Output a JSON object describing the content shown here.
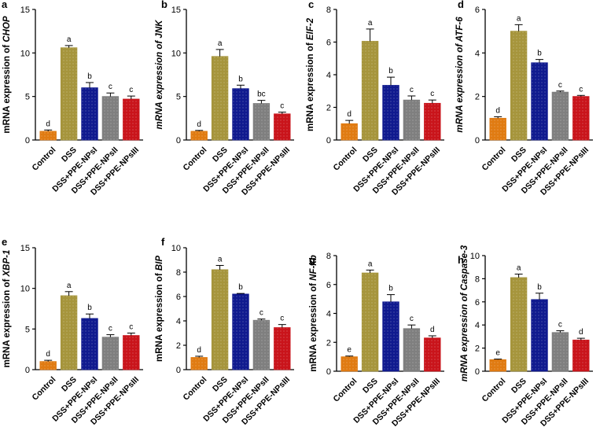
{
  "figure": {
    "groups": [
      "Control",
      "DSS",
      "DSS+PPE-NPsI",
      "DSS+PPE-NPsII",
      "DSS+PPE-NPsIII"
    ],
    "colors": [
      "#e07b12",
      "#a6953c",
      "#101a8f",
      "#7f7f7f",
      "#c9141b"
    ]
  },
  "chart_data": [
    {
      "type": "bar",
      "panel": "a",
      "ylabel_prefix": "mRNA expression of ",
      "gene": "CHOP",
      "ylim": [
        0,
        15
      ],
      "yticks": [
        0,
        5,
        10,
        15
      ],
      "categories": [
        "Control",
        "DSS",
        "DSS+PPE-NPsI",
        "DSS+PPE-NPsII",
        "DSS+PPE-NPsIII"
      ],
      "values": [
        1.0,
        10.6,
        6.0,
        5.0,
        4.7
      ],
      "errors": [
        0.15,
        0.25,
        0.6,
        0.4,
        0.35
      ],
      "letters": [
        "d",
        "a",
        "b",
        "c",
        "c"
      ]
    },
    {
      "type": "bar",
      "panel": "b",
      "ylabel_prefix": "mRNA expression of ",
      "gene": "JNK",
      "ylim": [
        0,
        15
      ],
      "yticks": [
        0,
        5,
        10,
        15
      ],
      "categories": [
        "Control",
        "DSS",
        "DSS+PPE-NPsI",
        "DSS+PPE-NPsII",
        "DSS+PPE-NPsIII"
      ],
      "values": [
        1.0,
        9.6,
        5.9,
        4.2,
        3.0
      ],
      "errors": [
        0.1,
        0.8,
        0.4,
        0.35,
        0.2
      ],
      "letters": [
        "d",
        "a",
        "b",
        "bc",
        "c"
      ]
    },
    {
      "type": "bar",
      "panel": "c",
      "ylabel_prefix": "mRNA expression of ",
      "gene": "EIF-2",
      "ylim": [
        0,
        8
      ],
      "yticks": [
        0,
        2,
        4,
        6,
        8
      ],
      "categories": [
        "Control",
        "DSS",
        "DSS+PPE-NPsI",
        "DSS+PPE-NPsII",
        "DSS+PPE-NPsIII"
      ],
      "values": [
        1.0,
        6.05,
        3.35,
        2.45,
        2.25
      ],
      "errors": [
        0.2,
        0.75,
        0.5,
        0.25,
        0.2
      ],
      "letters": [
        "d",
        "a",
        "b",
        "c",
        "c"
      ]
    },
    {
      "type": "bar",
      "panel": "d",
      "ylabel_prefix": "mRNA expression of ",
      "gene": "ATF-6",
      "ylim": [
        0,
        6
      ],
      "yticks": [
        0,
        2,
        4,
        6
      ],
      "categories": [
        "Control",
        "DSS",
        "DSS+PPE-NPsI",
        "DSS+PPE-NPsII",
        "DSS+PPE-NPsIII"
      ],
      "values": [
        1.0,
        5.0,
        3.55,
        2.2,
        2.0
      ],
      "errors": [
        0.07,
        0.3,
        0.15,
        0.05,
        0.05
      ],
      "letters": [
        "d",
        "a",
        "b",
        "c",
        "c"
      ]
    },
    {
      "type": "bar",
      "panel": "e",
      "ylabel_prefix": "mRNA expression of ",
      "gene": "XBP-1",
      "ylim": [
        0,
        15
      ],
      "yticks": [
        0,
        5,
        10,
        15
      ],
      "categories": [
        "Control",
        "DSS",
        "DSS+PPE-NPsI",
        "DSS+PPE-NPsII",
        "DSS+PPE-NPsIII"
      ],
      "values": [
        1.0,
        9.1,
        6.3,
        4.0,
        4.2
      ],
      "errors": [
        0.15,
        0.5,
        0.55,
        0.3,
        0.3
      ],
      "letters": [
        "d",
        "a",
        "b",
        "c",
        "c"
      ]
    },
    {
      "type": "bar",
      "panel": "f",
      "ylabel_prefix": "mRNA expression of ",
      "gene": "BIP",
      "ylim": [
        0,
        10
      ],
      "yticks": [
        0,
        2,
        4,
        6,
        8,
        10
      ],
      "categories": [
        "Control",
        "DSS",
        "DSS+PPE-NPsI",
        "DSS+PPE-NPsII",
        "DSS+PPE-NPsIII"
      ],
      "values": [
        1.0,
        8.2,
        6.2,
        4.05,
        3.45
      ],
      "errors": [
        0.1,
        0.35,
        0.05,
        0.1,
        0.25
      ],
      "letters": [
        "d",
        "a",
        "b",
        "c",
        "c"
      ]
    },
    {
      "type": "bar",
      "panel": "g",
      "ylabel_prefix": "mRNA expression of ",
      "gene": "NF-kb",
      "ylim": [
        0,
        8
      ],
      "yticks": [
        0,
        2,
        4,
        6,
        8
      ],
      "categories": [
        "Control",
        "DSS",
        "DSS+PPE-NPsI",
        "DSS+PPE-NPsII",
        "DSS+PPE-NPsIII"
      ],
      "values": [
        1.0,
        6.8,
        4.8,
        2.95,
        2.3
      ],
      "errors": [
        0.05,
        0.2,
        0.5,
        0.25,
        0.15
      ],
      "letters": [
        "e",
        "a",
        "b",
        "c",
        "d"
      ]
    },
    {
      "type": "bar",
      "panel": "h",
      "ylabel_prefix": "mRNA expression of ",
      "gene": "Caspase-3",
      "ylim": [
        0,
        10
      ],
      "yticks": [
        0,
        2,
        4,
        6,
        8,
        10
      ],
      "categories": [
        "Control",
        "DSS",
        "DSS+PPE-NPsI",
        "DSS+PPE-NPsII",
        "DSS+PPE-NPsIII"
      ],
      "values": [
        1.0,
        8.1,
        6.2,
        3.35,
        2.7
      ],
      "errors": [
        0.05,
        0.3,
        0.55,
        0.15,
        0.15
      ],
      "letters": [
        "e",
        "a",
        "b",
        "c",
        "d"
      ]
    }
  ]
}
